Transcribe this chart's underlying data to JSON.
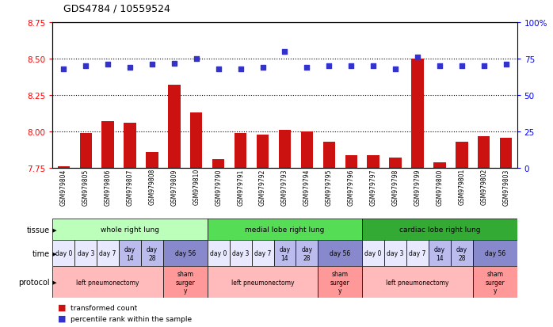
{
  "title": "GDS4784 / 10559524",
  "samples": [
    "GSM979804",
    "GSM979805",
    "GSM979806",
    "GSM979807",
    "GSM979808",
    "GSM979809",
    "GSM979810",
    "GSM979790",
    "GSM979791",
    "GSM979792",
    "GSM979793",
    "GSM979794",
    "GSM979795",
    "GSM979796",
    "GSM979797",
    "GSM979798",
    "GSM979799",
    "GSM979800",
    "GSM979801",
    "GSM979802",
    "GSM979803"
  ],
  "bar_values": [
    7.76,
    7.99,
    8.07,
    8.06,
    7.86,
    8.32,
    8.13,
    7.81,
    7.99,
    7.98,
    8.01,
    8.0,
    7.93,
    7.84,
    7.84,
    7.82,
    8.5,
    7.79,
    7.93,
    7.97,
    7.96
  ],
  "dot_pct": [
    68,
    70,
    71,
    69,
    71,
    72,
    75,
    68,
    68,
    69,
    80,
    69,
    70,
    70,
    70,
    68,
    76,
    70,
    70,
    70,
    71
  ],
  "ylim_left": [
    7.75,
    8.75
  ],
  "ylim_right": [
    0,
    100
  ],
  "yticks_left": [
    7.75,
    8.0,
    8.25,
    8.5,
    8.75
  ],
  "yticks_right": [
    0,
    25,
    50,
    75,
    100
  ],
  "bar_color": "#cc1111",
  "dot_color": "#3333cc",
  "tissue_groups": [
    {
      "label": "whole right lung",
      "start": 0,
      "end": 6,
      "color": "#bbffbb"
    },
    {
      "label": "medial lobe right lung",
      "start": 7,
      "end": 13,
      "color": "#55dd55"
    },
    {
      "label": "cardiac lobe right lung",
      "start": 14,
      "end": 20,
      "color": "#33aa33"
    }
  ],
  "time_spans": [
    {
      "label": "day 0",
      "start": 0,
      "end": 0,
      "color": "#e8e8ff"
    },
    {
      "label": "day 3",
      "start": 1,
      "end": 1,
      "color": "#e8e8ff"
    },
    {
      "label": "day 7",
      "start": 2,
      "end": 2,
      "color": "#e8e8ff"
    },
    {
      "label": "day\n14",
      "start": 3,
      "end": 3,
      "color": "#bbbbee"
    },
    {
      "label": "day\n28",
      "start": 4,
      "end": 4,
      "color": "#bbbbee"
    },
    {
      "label": "day 56",
      "start": 5,
      "end": 6,
      "color": "#8888cc"
    },
    {
      "label": "day 0",
      "start": 7,
      "end": 7,
      "color": "#e8e8ff"
    },
    {
      "label": "day 3",
      "start": 8,
      "end": 8,
      "color": "#e8e8ff"
    },
    {
      "label": "day 7",
      "start": 9,
      "end": 9,
      "color": "#e8e8ff"
    },
    {
      "label": "day\n14",
      "start": 10,
      "end": 10,
      "color": "#bbbbee"
    },
    {
      "label": "day\n28",
      "start": 11,
      "end": 11,
      "color": "#bbbbee"
    },
    {
      "label": "day 56",
      "start": 12,
      "end": 13,
      "color": "#8888cc"
    },
    {
      "label": "day 0",
      "start": 14,
      "end": 14,
      "color": "#e8e8ff"
    },
    {
      "label": "day 3",
      "start": 15,
      "end": 15,
      "color": "#e8e8ff"
    },
    {
      "label": "day 7",
      "start": 16,
      "end": 16,
      "color": "#e8e8ff"
    },
    {
      "label": "day\n14",
      "start": 17,
      "end": 17,
      "color": "#bbbbee"
    },
    {
      "label": "day\n28",
      "start": 18,
      "end": 18,
      "color": "#bbbbee"
    },
    {
      "label": "day 56",
      "start": 19,
      "end": 20,
      "color": "#8888cc"
    }
  ],
  "protocol_spans": [
    {
      "label": "left pneumonectomy",
      "start": 0,
      "end": 4,
      "color": "#ffbbbb"
    },
    {
      "label": "sham\nsurger\ny",
      "start": 5,
      "end": 6,
      "color": "#ff9999"
    },
    {
      "label": "left pneumonectomy",
      "start": 7,
      "end": 11,
      "color": "#ffbbbb"
    },
    {
      "label": "sham\nsurger\ny",
      "start": 12,
      "end": 13,
      "color": "#ff9999"
    },
    {
      "label": "left pneumonectomy",
      "start": 14,
      "end": 18,
      "color": "#ffbbbb"
    },
    {
      "label": "sham\nsurger\ny",
      "start": 19,
      "end": 20,
      "color": "#ff9999"
    }
  ],
  "legend_items": [
    {
      "label": "transformed count",
      "color": "#cc1111"
    },
    {
      "label": "percentile rank within the sample",
      "color": "#3333cc"
    }
  ]
}
